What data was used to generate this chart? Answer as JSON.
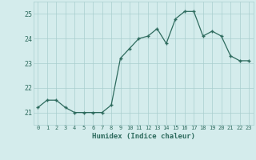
{
  "x": [
    0,
    1,
    2,
    3,
    4,
    5,
    6,
    7,
    8,
    9,
    10,
    11,
    12,
    13,
    14,
    15,
    16,
    17,
    18,
    19,
    20,
    21,
    22,
    23
  ],
  "y": [
    21.2,
    21.5,
    21.5,
    21.2,
    21.0,
    21.0,
    21.0,
    21.0,
    21.3,
    23.2,
    23.6,
    24.0,
    24.1,
    24.4,
    23.8,
    24.8,
    25.1,
    25.1,
    24.1,
    24.3,
    24.1,
    23.3,
    23.1,
    23.1
  ],
  "xlabel": "Humidex (Indice chaleur)",
  "xlim": [
    -0.5,
    23.5
  ],
  "ylim": [
    20.5,
    25.5
  ],
  "yticks": [
    21,
    22,
    23,
    24,
    25
  ],
  "xtick_labels": [
    "0",
    "1",
    "2",
    "3",
    "4",
    "5",
    "6",
    "7",
    "8",
    "9",
    "10",
    "11",
    "12",
    "13",
    "14",
    "15",
    "16",
    "17",
    "18",
    "19",
    "20",
    "21",
    "22",
    "23"
  ],
  "line_color": "#2e6b5e",
  "marker": "+",
  "bg_color": "#d4ecec",
  "grid_color": "#aacece",
  "tick_color": "#2e6b5e",
  "label_color": "#2e6b5e",
  "markersize": 3.5,
  "linewidth": 0.9,
  "markeredgewidth": 1.0,
  "xlabel_fontsize": 6.5,
  "xtick_fontsize": 5.0,
  "ytick_fontsize": 6.0
}
